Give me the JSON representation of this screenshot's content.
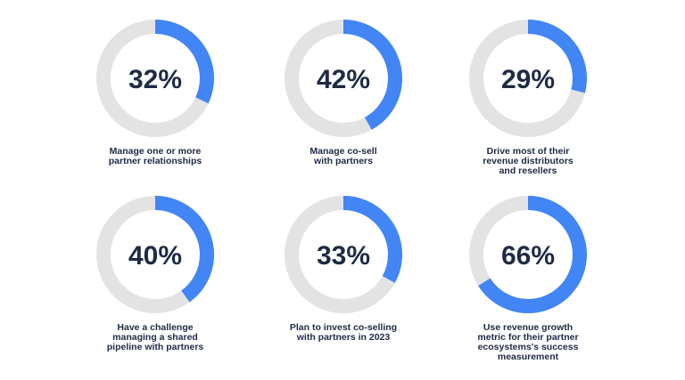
{
  "chart_data": [
    {
      "type": "pie",
      "value": 32,
      "label": "32%",
      "caption": "Manage one or more\npartner relationships"
    },
    {
      "type": "pie",
      "value": 42,
      "label": "42%",
      "caption": "Manage co-sell\nwith partners"
    },
    {
      "type": "pie",
      "value": 29,
      "label": "29%",
      "caption": "Drive most of their\nrevenue distributors\nand resellers"
    },
    {
      "type": "pie",
      "value": 40,
      "label": "40%",
      "caption": "Have a challenge\nmanaging a shared\npipeline with partners"
    },
    {
      "type": "pie",
      "value": 33,
      "label": "33%",
      "caption": "Plan to invest co-selling\nwith partners in 2023"
    },
    {
      "type": "pie",
      "value": 66,
      "label": "66%",
      "caption": "Use revenue growth\nmetric for their partner\necosystems's success\nmeasurement"
    }
  ],
  "colors": {
    "accent": "#4285f4",
    "track": "#e3e3e3",
    "text": "#1f2a44"
  }
}
